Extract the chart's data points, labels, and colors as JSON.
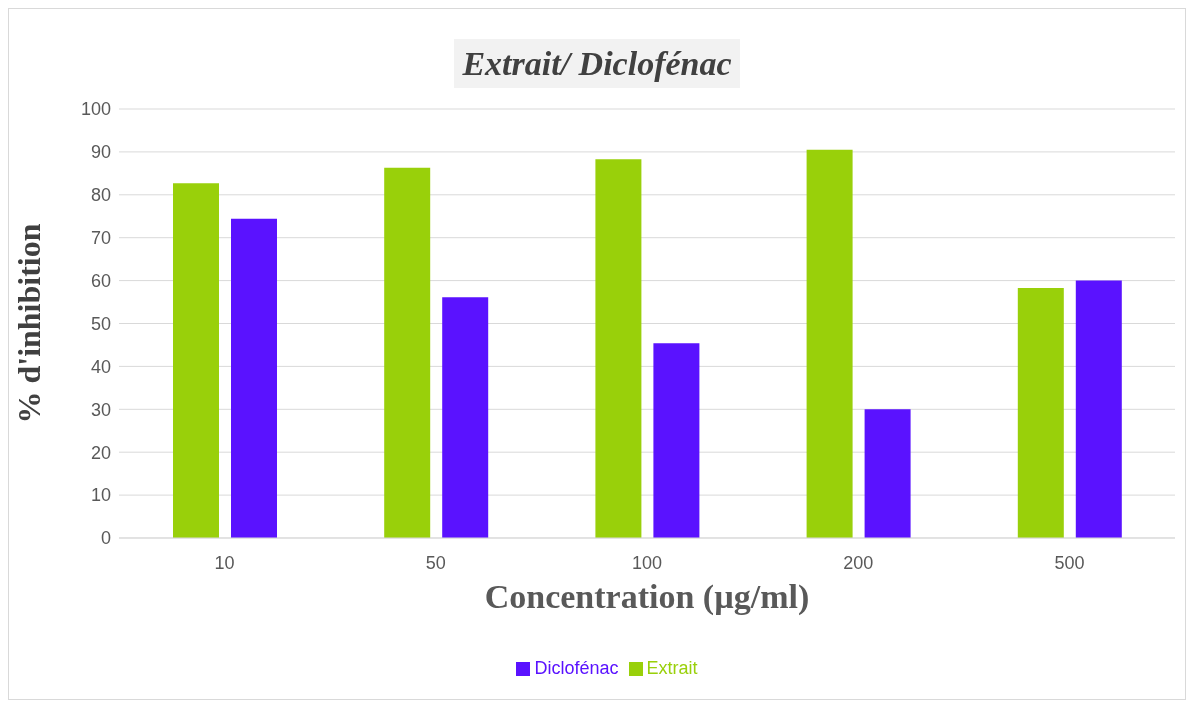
{
  "chart_data": {
    "type": "bar",
    "title": "Extrait/ Diclofénac",
    "xlabel": "Concentration (µg/ml)",
    "ylabel": "%  d'inhibition",
    "categories": [
      "10",
      "50",
      "100",
      "200",
      "500"
    ],
    "series": [
      {
        "name": "Extrait",
        "color": "#99d00a",
        "values": [
          82.7,
          86.3,
          88.3,
          90.5,
          58.3
        ]
      },
      {
        "name": "Diclofénac",
        "color": "#5a12ff",
        "values": [
          74.4,
          56.1,
          45.4,
          30.0,
          60.0
        ]
      }
    ],
    "ylim": [
      0,
      100
    ],
    "yticks": [
      0,
      10,
      20,
      30,
      40,
      50,
      60,
      70,
      80,
      90,
      100
    ],
    "grid": "y",
    "legend": "bottom"
  }
}
